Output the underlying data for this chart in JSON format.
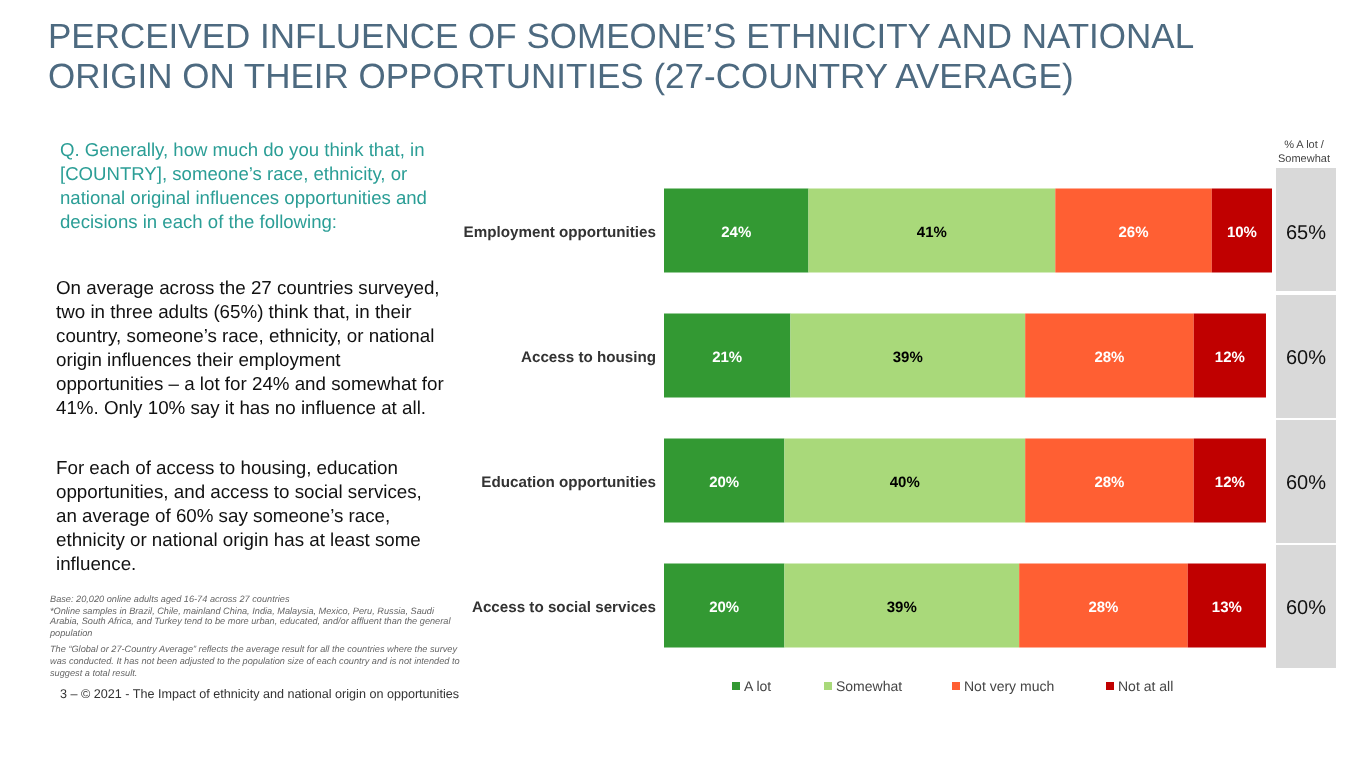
{
  "chart_data": {
    "type": "bar",
    "orientation": "horizontal",
    "stacked": true,
    "legend": "bottom",
    "title": "PERCEIVED INFLUENCE OF SOMEONE’S ETHNICITY AND NATIONAL ORIGIN ON THEIR OPPORTUNITIES (27-COUNTRY AVERAGE)",
    "subtitle": "Q. Generally, how much do you think that, in [COUNTRY], someone’s race, ethnicity, or national original influences opportunities and decisions in each of the following:",
    "categories": [
      "Employment opportunities",
      "Access to housing",
      "Education opportunities",
      "Access to social services"
    ],
    "series": [
      {
        "name": "A lot",
        "color": "#339933",
        "values": [
          24,
          21,
          20,
          20
        ],
        "value_labels": [
          "24%",
          "21%",
          "20%",
          "20%"
        ]
      },
      {
        "name": "Somewhat",
        "color": "#a9d97a",
        "values": [
          41,
          39,
          40,
          39
        ],
        "value_labels": [
          "41%",
          "39%",
          "40%",
          "39%"
        ]
      },
      {
        "name": "Not very much",
        "color": "#ff5f33",
        "values": [
          26,
          28,
          28,
          28
        ],
        "value_labels": [
          "26%",
          "28%",
          "28%",
          "28%"
        ]
      },
      {
        "name": "Not at all",
        "color": "#c00000",
        "values": [
          10,
          12,
          12,
          13
        ],
        "value_labels": [
          "10%",
          "12%",
          "12%",
          "13%"
        ]
      }
    ],
    "annotations": [
      "On average across the 27 countries surveyed, two in three adults (65%) think that, in their country, someone’s race, ethnicity, or national origin influences their employment opportunities – a lot for 24% and somewhat for 41%. Only 10% say it has no influence at all.",
      "For each of access to housing, education opportunities, and access to social services, an average of 60% say someone’s race, ethnicity or national origin has at least some influence.",
      "Base: 20,020 online adults aged 16-74 across 27 countries",
      "*Online samples in Brazil, Chile, mainland China, India, Malaysia, Mexico, Peru, Russia, Saudi Arabia, South Africa, and Turkey tend to be more urban, educated, and/or affluent than the general population",
      "The “Global or 27-Country Average” reflects the average result for all the countries where the survey was conducted. It has not been adjusted to the population size of each country and is not intended to suggest a total result.",
      "3 – © 2021 - The Impact of ethnicity and national origin on opportunities",
      "% A lot / Somewhat",
      "65%",
      "60%",
      "60%",
      "60%"
    ]
  }
}
